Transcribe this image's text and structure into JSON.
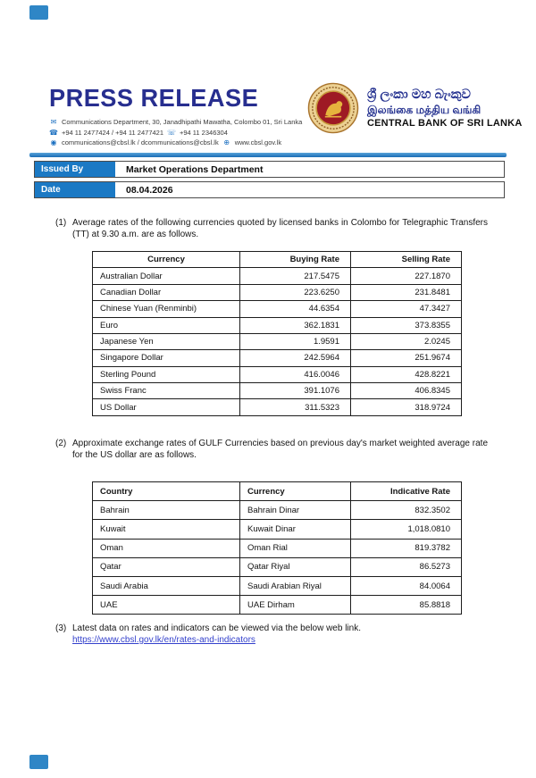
{
  "header": {
    "title": "PRESS RELEASE",
    "contact": {
      "address": "Communications Department, 30, Janadhipathi Mawatha, Colombo 01, Sri Lanka",
      "phones": "+94 11 2477424 / +94 11 2477421",
      "fax": "+94 11  2346304",
      "emails": "communications@cbsl.lk / dcommunications@cbsl.lk",
      "website": "www.cbsl.gov.lk"
    },
    "bank": {
      "name_sinhala": "ශ්‍රී ලංකා මහ බැංකුව",
      "name_tamil": "இலங்கை மத்திய வங்கி",
      "name_english": "CENTRAL BANK OF SRI LANKA"
    }
  },
  "meta": {
    "issued_by_label": "Issued By",
    "issued_by_value": "Market Operations Department",
    "date_label": "Date",
    "date_value": "08.04.2026"
  },
  "sections": {
    "s1_num": "(1)",
    "s1_text": "Average rates of the following currencies quoted by licensed banks in Colombo for Telegraphic Transfers (TT) at 9.30 a.m. are as follows.",
    "s2_num": "(2)",
    "s2_text": "Approximate exchange rates of GULF Currencies based on previous day's market weighted average rate for the US dollar are as follows.",
    "s3_num": "(3)",
    "s3_text": "Latest data on rates and indicators can be viewed via the below web link.",
    "s3_link": "https://www.cbsl.gov.lk/en/rates-and-indicators"
  },
  "table1": {
    "headers": [
      "Currency",
      "Buying Rate",
      "Selling Rate"
    ],
    "rows": [
      [
        "Australian Dollar",
        "217.5475",
        "227.1870"
      ],
      [
        "Canadian Dollar",
        "223.6250",
        "231.8481"
      ],
      [
        "Chinese Yuan (Renminbi)",
        "44.6354",
        "47.3427"
      ],
      [
        "Euro",
        "362.1831",
        "373.8355"
      ],
      [
        "Japanese Yen",
        "1.9591",
        "2.0245"
      ],
      [
        "Singapore Dollar",
        "242.5964",
        "251.9674"
      ],
      [
        "Sterling Pound",
        "416.0046",
        "428.8221"
      ],
      [
        "Swiss Franc",
        "391.1076",
        "406.8345"
      ],
      [
        "US Dollar",
        "311.5323",
        "318.9724"
      ]
    ]
  },
  "table2": {
    "headers": [
      "Country",
      "Currency",
      "Indicative Rate"
    ],
    "rows": [
      [
        "Bahrain",
        "Bahrain Dinar",
        "832.3502"
      ],
      [
        "Kuwait",
        "Kuwait Dinar",
        "1,018.0810"
      ],
      [
        "Oman",
        "Oman Rial",
        "819.3782"
      ],
      [
        "Qatar",
        "Qatar Riyal",
        "86.5273"
      ],
      [
        "Saudi Arabia",
        "Saudi Arabian Riyal",
        "84.0064"
      ],
      [
        "UAE",
        "UAE Dirham",
        "85.8818"
      ]
    ]
  },
  "colors": {
    "title_blue": "#272e8f",
    "accent_blue": "#1b79c4",
    "seal_red": "#9e1a24",
    "seal_gold": "#e6b33d",
    "link_blue": "#3340cc"
  }
}
